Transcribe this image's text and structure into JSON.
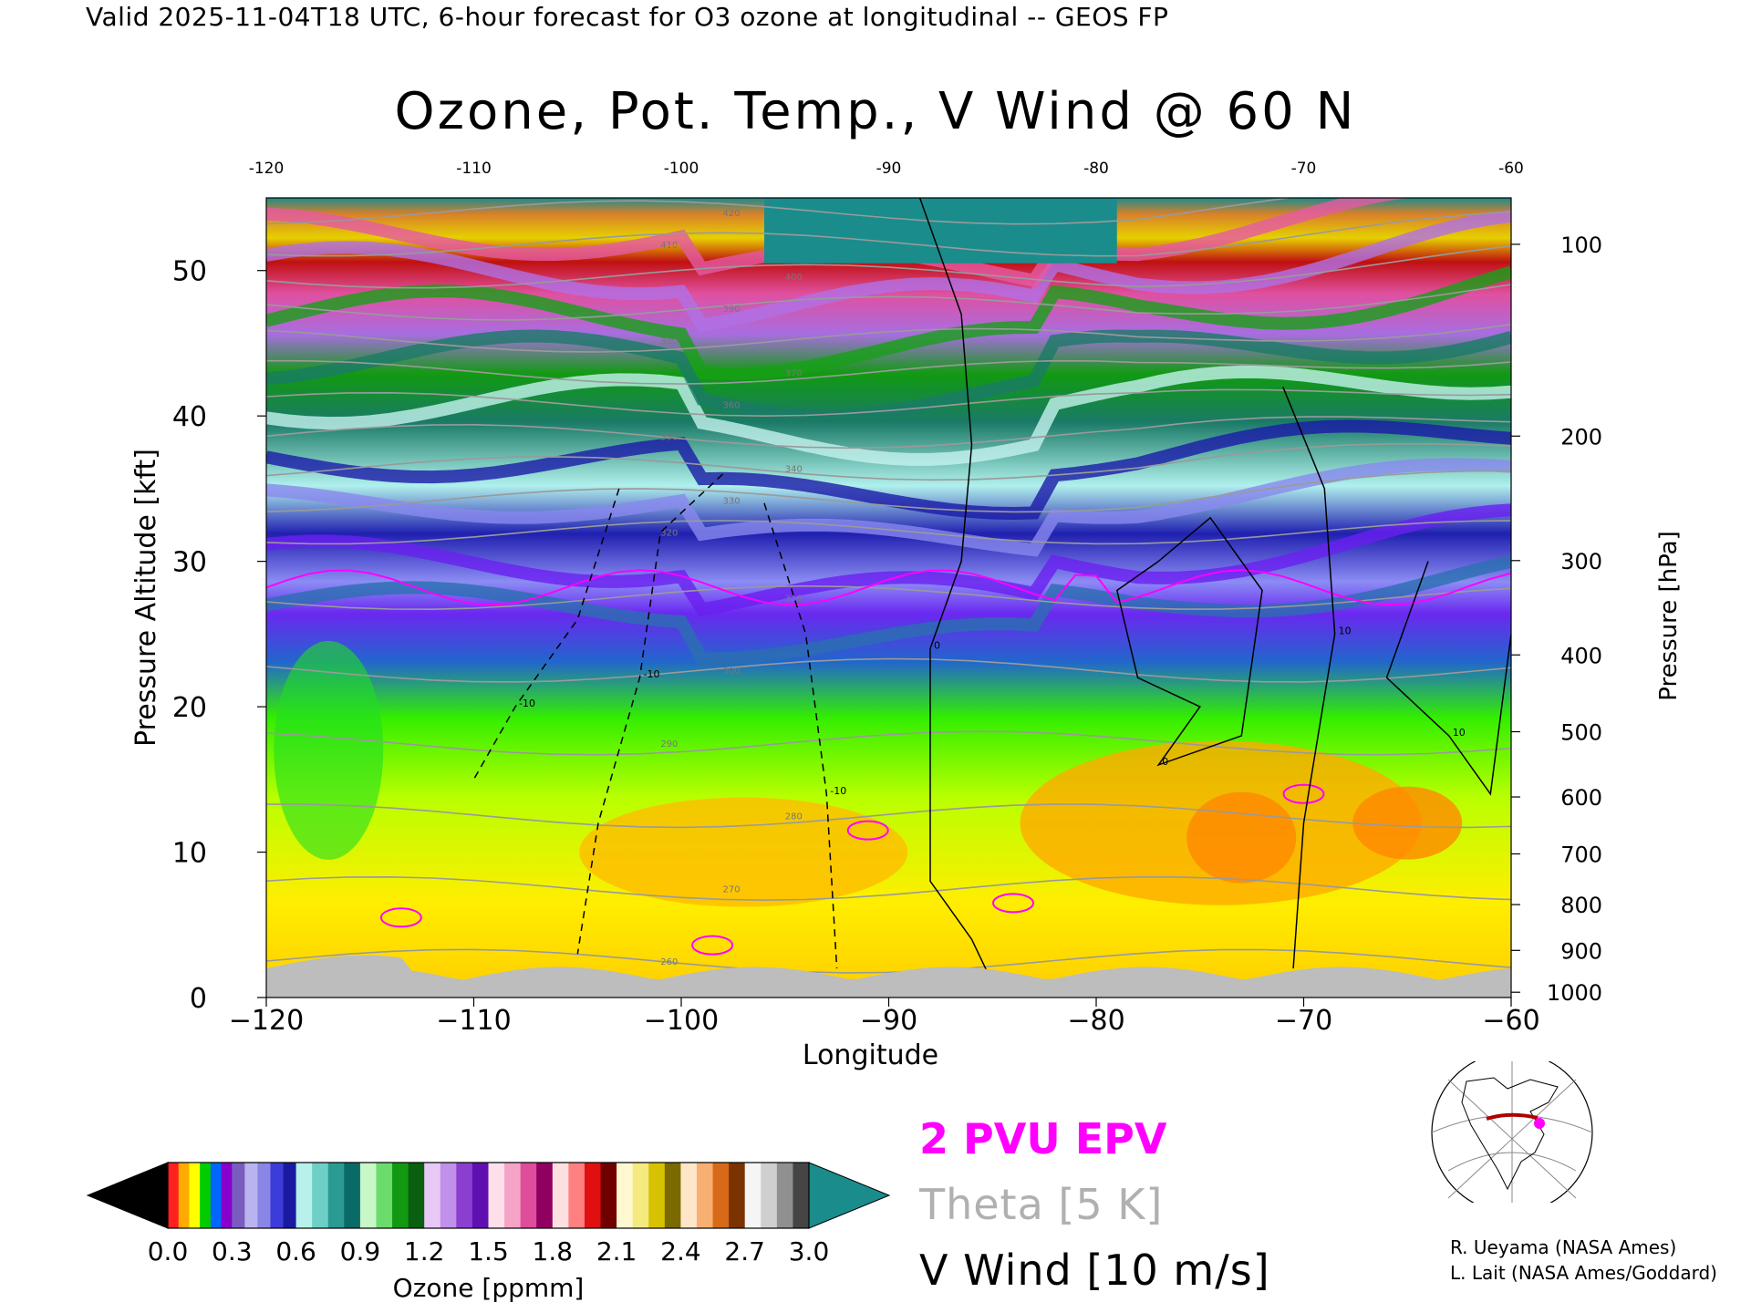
{
  "header": {
    "valid_line": "Valid 2025-11-04T18 UTC, 6-hour forecast for O3 ozone at longitudinal -- GEOS FP"
  },
  "chart_data": {
    "type": "heatmap",
    "title": "Ozone, Pot. Temp., V Wind @ 60 N",
    "xlabel": "Longitude",
    "ylabel": "Pressure Altitude [kft]",
    "y2label": "Pressure [hPa]",
    "xlim": [
      -120,
      -60
    ],
    "ylim": [
      0,
      55
    ],
    "x_ticks": [
      "−120",
      "−110",
      "−100",
      "−90",
      "−80",
      "−70",
      "−60"
    ],
    "x_ticks_top": [
      "-120",
      "-110",
      "-100",
      "-90",
      "-80",
      "-70",
      "-60"
    ],
    "x_tick_values": [
      -120,
      -110,
      -100,
      -90,
      -80,
      -70,
      -60
    ],
    "y_ticks": [
      "0",
      "10",
      "20",
      "30",
      "40",
      "50"
    ],
    "y_tick_values": [
      0,
      10,
      20,
      30,
      40,
      50
    ],
    "pressure_ticks": [
      "100",
      "200",
      "300",
      "400",
      "500",
      "600",
      "700",
      "800",
      "900",
      "1000"
    ],
    "pressure_values": [
      100,
      200,
      300,
      400,
      500,
      600,
      700,
      800,
      900,
      1000
    ],
    "theta_labels": [
      "260",
      "270",
      "280",
      "290",
      "300",
      "310",
      "320",
      "330",
      "340",
      "350",
      "360",
      "370",
      "380",
      "390",
      "400",
      "410",
      "420"
    ],
    "theta_values": [
      260,
      270,
      280,
      290,
      300,
      310,
      320,
      330,
      340,
      350,
      360,
      370,
      380,
      390,
      400,
      410,
      420
    ],
    "wind_labels": [
      "0",
      "10",
      "-10"
    ],
    "wind_contour_values": [
      -10,
      0,
      10
    ],
    "colorbar": {
      "label": "Ozone [ppmm]",
      "ticks": [
        "0.0",
        "0.3",
        "0.6",
        "0.9",
        "1.2",
        "1.5",
        "1.8",
        "2.1",
        "2.4",
        "2.7",
        "3.0"
      ],
      "tick_values": [
        0.0,
        0.3,
        0.6,
        0.9,
        1.2,
        1.5,
        1.8,
        2.1,
        2.4,
        2.7,
        3.0
      ],
      "segment_colors": [
        [
          "#ff2020",
          "#ffaa00",
          "#ffff00",
          "#00cc00",
          "#0066ff",
          "#8800cc"
        ],
        [
          "#7a5cc0",
          "#b9b3f0",
          "#8a86e6",
          "#3c3cd8",
          "#1a1aa0"
        ],
        [
          "#b8f0ec",
          "#6ecfc6",
          "#2a9a92",
          "#0a6a66"
        ],
        [
          "#c8f7c8",
          "#6bdc6b",
          "#119a11",
          "#0a6010"
        ],
        [
          "#e8c8f5",
          "#c190ea",
          "#8a3fd0",
          "#6010b0"
        ],
        [
          "#fde0ea",
          "#f5a3c7",
          "#dd4d9a",
          "#900060"
        ],
        [
          "#ffe0e0",
          "#ff8080",
          "#e01010",
          "#700000"
        ],
        [
          "#fff8d0",
          "#f5ea80",
          "#d6c200",
          "#7a6a00"
        ],
        [
          "#ffe6c8",
          "#f7b072",
          "#d76a18",
          "#7a3200"
        ],
        [
          "#f5f5f5",
          "#cfcfcf",
          "#909090",
          "#454545"
        ]
      ],
      "over_color": "#1a8c8c",
      "under_color": "#000000"
    }
  },
  "legend": {
    "epv": "2 PVU EPV",
    "theta": "Theta [5 K]",
    "vwind": "V Wind [10 m/s]"
  },
  "credits": [
    "R. Ueyama (NASA Ames)",
    "L. Lait (NASA Ames/Goddard)"
  ]
}
